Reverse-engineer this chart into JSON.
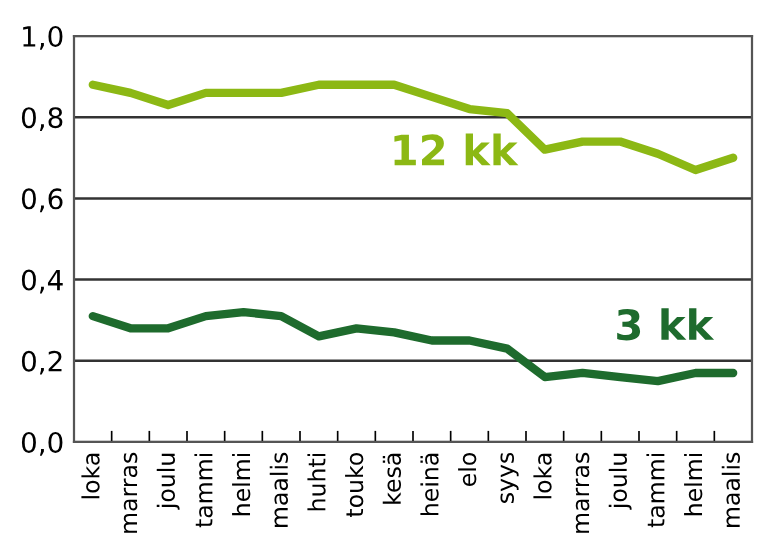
{
  "chart_data": {
    "type": "line",
    "categories": [
      "loka",
      "marras",
      "joulu",
      "tammi",
      "helmi",
      "maalis",
      "huhti",
      "touko",
      "kesä",
      "heinä",
      "elo",
      "syys",
      "loka",
      "marras",
      "joulu",
      "tammi",
      "helmi",
      "maalis"
    ],
    "series": [
      {
        "name": "12 kk",
        "color": "#8cb814",
        "values": [
          0.88,
          0.86,
          0.83,
          0.86,
          0.86,
          0.86,
          0.88,
          0.88,
          0.88,
          0.85,
          0.82,
          0.81,
          0.72,
          0.74,
          0.74,
          0.71,
          0.67,
          0.7
        ]
      },
      {
        "name": "3 kk",
        "color": "#1e6b2d",
        "values": [
          0.31,
          0.28,
          0.28,
          0.31,
          0.32,
          0.31,
          0.26,
          0.28,
          0.27,
          0.25,
          0.25,
          0.23,
          0.16,
          0.17,
          0.16,
          0.15,
          0.17,
          0.17
        ]
      }
    ],
    "ylim": [
      0,
      1
    ],
    "yticks": [
      {
        "value": 0,
        "label": "0,0"
      },
      {
        "value": 0.2,
        "label": "0,2"
      },
      {
        "value": 0.4,
        "label": "0,4"
      },
      {
        "value": 0.6,
        "label": "0,6"
      },
      {
        "value": 0.8,
        "label": "0,8"
      },
      {
        "value": 1,
        "label": "1,0"
      }
    ],
    "grid": "y",
    "legend": false,
    "marker": "none",
    "line_style": "solid"
  }
}
